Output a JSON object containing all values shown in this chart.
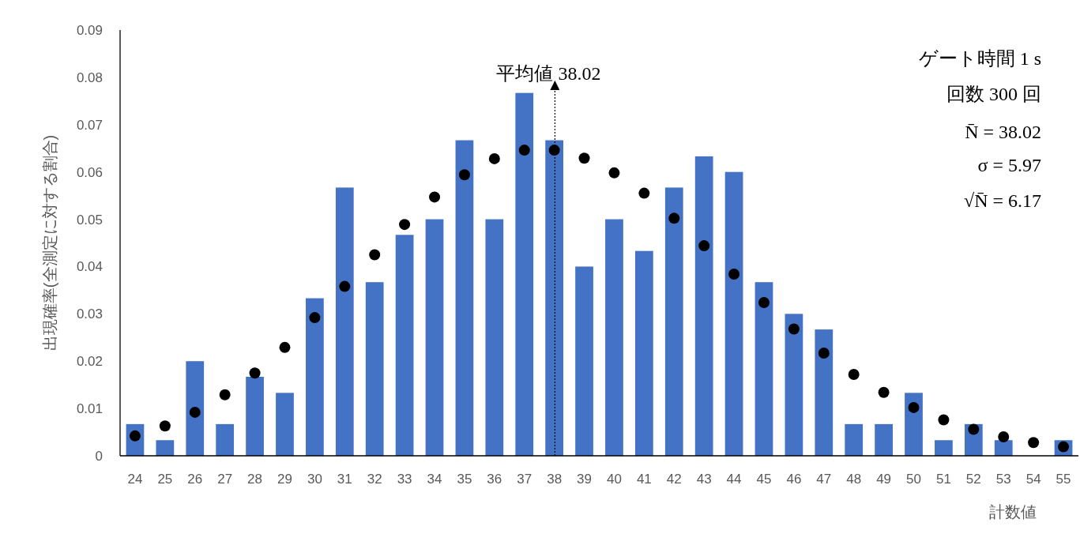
{
  "chart_data": {
    "type": "bar",
    "xlabel": "計数値",
    "ylabel": "出現確率(全測定に対する割合)",
    "x": [
      24,
      25,
      26,
      27,
      28,
      29,
      30,
      31,
      32,
      33,
      34,
      35,
      36,
      37,
      38,
      39,
      40,
      41,
      42,
      43,
      44,
      45,
      46,
      47,
      48,
      49,
      50,
      51,
      52,
      53,
      54,
      55
    ],
    "xlim": [
      23.5,
      55.5
    ],
    "xticks": [
      24,
      25,
      26,
      27,
      28,
      29,
      30,
      31,
      32,
      33,
      34,
      35,
      36,
      37,
      38,
      39,
      40,
      41,
      42,
      43,
      44,
      45,
      46,
      47,
      48,
      49,
      50,
      51,
      52,
      53,
      54,
      55
    ],
    "ylim": [
      0,
      0.09
    ],
    "yticks": [
      0,
      0.01,
      0.02,
      0.03,
      0.04,
      0.05,
      0.06,
      0.07,
      0.08,
      0.09
    ],
    "series": [
      {
        "color": "#4472c4",
        "values": [
          0.0067,
          0.0033,
          0.02,
          0.0067,
          0.0167,
          0.0133,
          0.0333,
          0.0567,
          0.0367,
          0.0467,
          0.05,
          0.0667,
          0.05,
          0.0767,
          0.0667,
          0.04,
          0.05,
          0.0433,
          0.0567,
          0.0633,
          0.06,
          0.0367,
          0.03,
          0.0267,
          0.0067,
          0.0067,
          0.0133,
          0.0033,
          0.0067,
          0.0033,
          0,
          0.0033
        ]
      },
      {
        "type": "scatter",
        "color": "#000000",
        "marker": "circle",
        "values": [
          0.0042,
          0.0063,
          0.0092,
          0.0129,
          0.0175,
          0.0229,
          0.0292,
          0.0358,
          0.0425,
          0.0489,
          0.0547,
          0.0594,
          0.0628,
          0.0646,
          0.0646,
          0.0629,
          0.0598,
          0.0555,
          0.0502,
          0.0444,
          0.0384,
          0.0324,
          0.0268,
          0.0217,
          0.0172,
          0.0134,
          0.0102,
          0.0076,
          0.0056,
          0.004,
          0.0028,
          0.0019
        ]
      }
    ],
    "ref_lines": [
      {
        "axis": "x",
        "value": 38.02,
        "label": "平均値 38.02",
        "line_style": "dotted",
        "color": "#000000"
      }
    ],
    "annotations": [
      "ゲート時間 1 s",
      "回数 300 回",
      "N̄ = 38.02",
      "σ = 5.97",
      "√N̄ = 6.17"
    ]
  }
}
